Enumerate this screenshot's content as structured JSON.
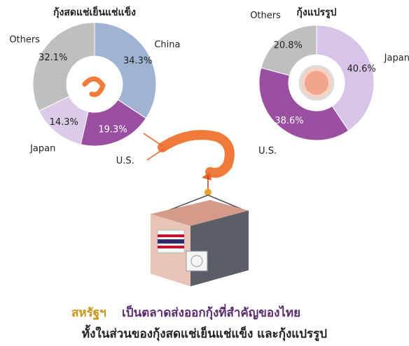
{
  "chart_data": [
    {
      "type": "pie",
      "title": "กุ้งสดแช่เย็นแช่แข็ง",
      "categories": [
        "China",
        "U.S.",
        "Japan",
        "Others"
      ],
      "values": [
        34.3,
        19.3,
        14.3,
        32.1
      ],
      "value_labels": [
        "34.3%",
        "19.3%",
        "14.3%",
        "32.1%"
      ],
      "colors": [
        "#9fb3d3",
        "#9a4fa1",
        "#dccbe8",
        "#bfbfbf"
      ]
    },
    {
      "type": "pie",
      "title": "กุ้งแปรรูป",
      "categories": [
        "Japan",
        "U.S.",
        "Others"
      ],
      "values": [
        40.6,
        38.6,
        20.8
      ],
      "value_labels": [
        "40.6%",
        "38.6%",
        "20.8%"
      ],
      "colors": [
        "#d8c4e8",
        "#9a4fa1",
        "#bfbfbf"
      ]
    }
  ],
  "caption": {
    "highlight": "สหรัฐฯ",
    "text": "เป็นตลาดส่งออกกุ้งที่สำคัญของไทย",
    "line2": "ทั้งในส่วนของกุ้งสดแช่เย็นแช่แข็ง และกุ้งแปรรูป"
  }
}
